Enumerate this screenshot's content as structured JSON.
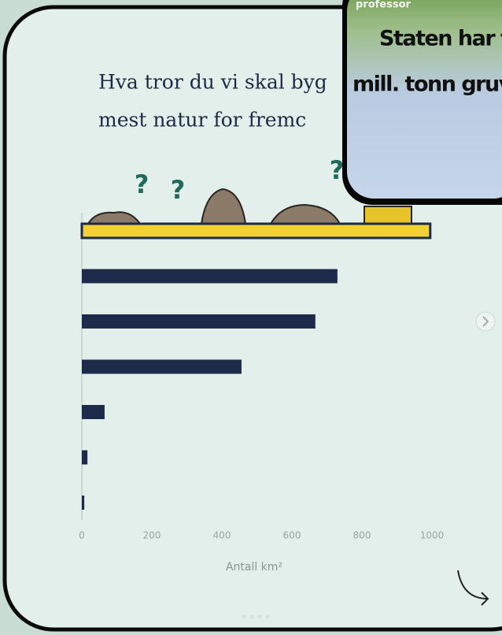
{
  "post": {
    "title_lines": [
      "Hva tror du vi skal byg",
      "mest natur for fremc"
    ],
    "illustration_marks": [
      "?",
      "?",
      "?"
    ]
  },
  "overlay": {
    "caption_top": "professor",
    "lines": [
      "Staten har tilla",
      "mill. tonn gruve"
    ]
  },
  "chart_data": {
    "type": "hbar",
    "x_label": "Antall km²",
    "categories": [
      null,
      null,
      null,
      null,
      null,
      null,
      null
    ],
    "values": [
      995,
      730,
      667,
      456,
      65,
      16,
      7
    ],
    "colors": [
      "#f2d230",
      "#1d2a4a",
      "#1d2a4a",
      "#1d2a4a",
      "#1d2a4a",
      "#1d2a4a",
      "#1d2a4a"
    ],
    "xlim": [
      0,
      1000
    ],
    "xticks": [
      0,
      200,
      400,
      600,
      800,
      1000
    ]
  }
}
